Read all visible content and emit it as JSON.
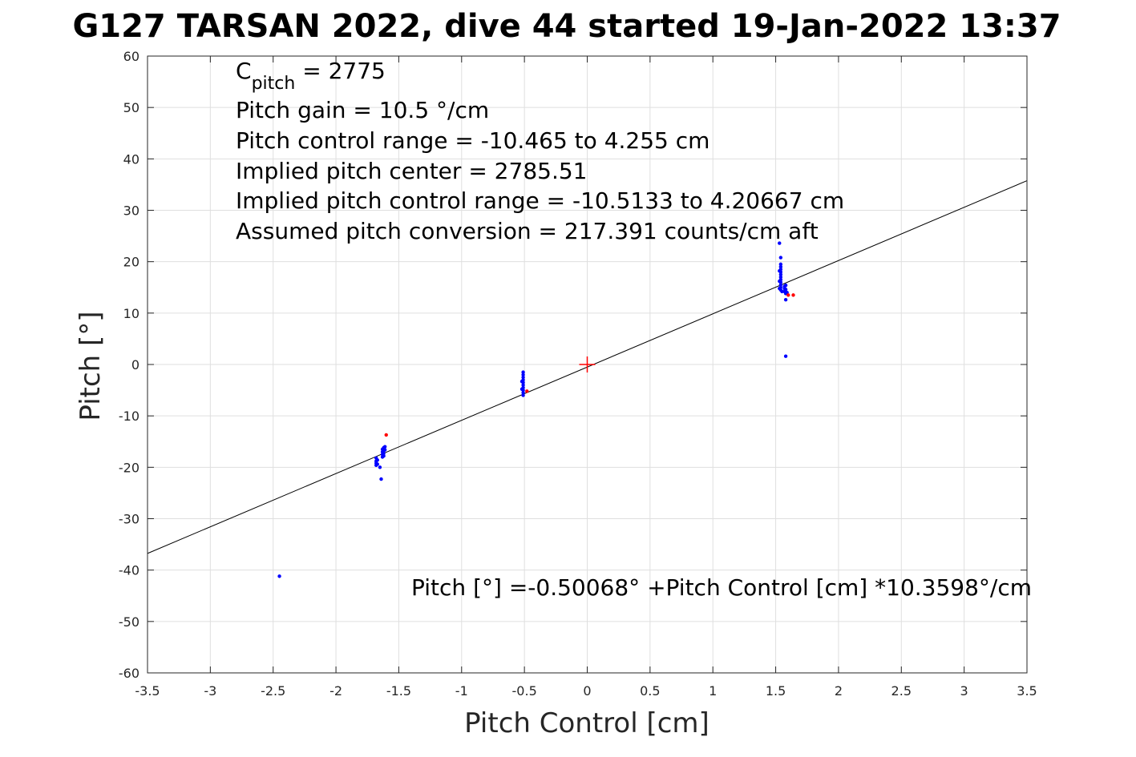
{
  "chart_data": {
    "type": "scatter",
    "title": "G127 TARSAN 2022, dive 44 started 19-Jan-2022 13:37",
    "xlabel": "Pitch Control [cm]",
    "ylabel": "Pitch [°]",
    "xlim": [
      -3.5,
      3.5
    ],
    "ylim": [
      -60,
      60
    ],
    "xticks": [
      -3.5,
      -3,
      -2.5,
      -2,
      -1.5,
      -1,
      -0.5,
      0,
      0.5,
      1,
      1.5,
      2,
      2.5,
      3,
      3.5
    ],
    "xtick_labels": [
      "-3.5",
      "-3",
      "-2.5",
      "-2",
      "-1.5",
      "-1",
      "-0.5",
      "0",
      "0.5",
      "1",
      "1.5",
      "2",
      "2.5",
      "3",
      "3.5"
    ],
    "yticks": [
      60,
      50,
      40,
      30,
      20,
      10,
      0,
      -10,
      -20,
      -30,
      -40,
      -50,
      -60
    ],
    "ytick_labels": [
      "60",
      "50",
      "40",
      "30",
      "20",
      "10",
      "0",
      "-10",
      "-20",
      "-30",
      "-40",
      "-50",
      "-60"
    ],
    "grid": true,
    "annotations": {
      "c_pitch_label": "C",
      "c_pitch_sub": "pitch",
      "c_pitch_value": " = 2775",
      "lines": [
        "Pitch gain = 10.5 °/cm",
        "Pitch control range = -10.465 to 4.255 cm",
        "Implied pitch center = 2785.51",
        "Implied pitch control range = -10.5133 to 4.20667 cm",
        "Assumed pitch conversion = 217.391 counts/cm aft"
      ],
      "fit_equation": "Pitch [°] =-0.50068° +Pitch Control [cm] *10.3598°/cm"
    },
    "fit_line": {
      "intercept": -0.50068,
      "slope": 10.3598,
      "color": "#000000"
    },
    "center_marker": {
      "x": 0,
      "y": 0,
      "color": "#ff0000"
    },
    "series": [
      {
        "color": "#0000ff",
        "points": [
          [
            -2.45,
            -41.2
          ],
          [
            -1.68,
            -18.2
          ],
          [
            -1.68,
            -18.8
          ],
          [
            -1.68,
            -19.2
          ],
          [
            -1.68,
            -19.6
          ],
          [
            -1.67,
            -18.6
          ],
          [
            -1.67,
            -19.4
          ],
          [
            -1.65,
            -20.0
          ],
          [
            -1.64,
            -22.3
          ],
          [
            -1.63,
            -16.5
          ],
          [
            -1.63,
            -17.0
          ],
          [
            -1.63,
            -17.5
          ],
          [
            -1.63,
            -18.0
          ],
          [
            -1.62,
            -16.2
          ],
          [
            -1.62,
            -16.8
          ],
          [
            -1.62,
            -17.3
          ],
          [
            -1.62,
            -17.8
          ],
          [
            -1.61,
            -16.0
          ],
          [
            -1.61,
            -16.6
          ],
          [
            -0.51,
            -1.5
          ],
          [
            -0.51,
            -2.0
          ],
          [
            -0.51,
            -2.5
          ],
          [
            -0.51,
            -3.0
          ],
          [
            -0.51,
            -3.5
          ],
          [
            -0.51,
            -4.0
          ],
          [
            -0.51,
            -4.5
          ],
          [
            -0.51,
            -5.0
          ],
          [
            -0.51,
            -5.5
          ],
          [
            -0.51,
            -6.0
          ],
          [
            -0.52,
            -3.3
          ],
          [
            -0.52,
            -4.8
          ],
          [
            1.53,
            23.6
          ],
          [
            1.54,
            20.8
          ],
          [
            1.54,
            19.5
          ],
          [
            1.54,
            19.0
          ],
          [
            1.54,
            18.5
          ],
          [
            1.54,
            18.0
          ],
          [
            1.54,
            17.5
          ],
          [
            1.54,
            17.0
          ],
          [
            1.54,
            16.5
          ],
          [
            1.54,
            16.0
          ],
          [
            1.54,
            15.5
          ],
          [
            1.54,
            15.0
          ],
          [
            1.54,
            14.5
          ],
          [
            1.55,
            14.2
          ],
          [
            1.53,
            18.2
          ],
          [
            1.53,
            16.2
          ],
          [
            1.53,
            14.8
          ],
          [
            1.57,
            15.2
          ],
          [
            1.57,
            14.8
          ],
          [
            1.57,
            14.2
          ],
          [
            1.58,
            15.4
          ],
          [
            1.58,
            14.6
          ],
          [
            1.58,
            13.8
          ],
          [
            1.58,
            12.6
          ],
          [
            1.59,
            14.0
          ],
          [
            1.58,
            1.6
          ]
        ]
      },
      {
        "color": "#ff0000",
        "points": [
          [
            -1.6,
            -13.7
          ],
          [
            -0.48,
            -5.2
          ],
          [
            1.6,
            13.5
          ],
          [
            1.64,
            13.5
          ]
        ]
      }
    ]
  }
}
